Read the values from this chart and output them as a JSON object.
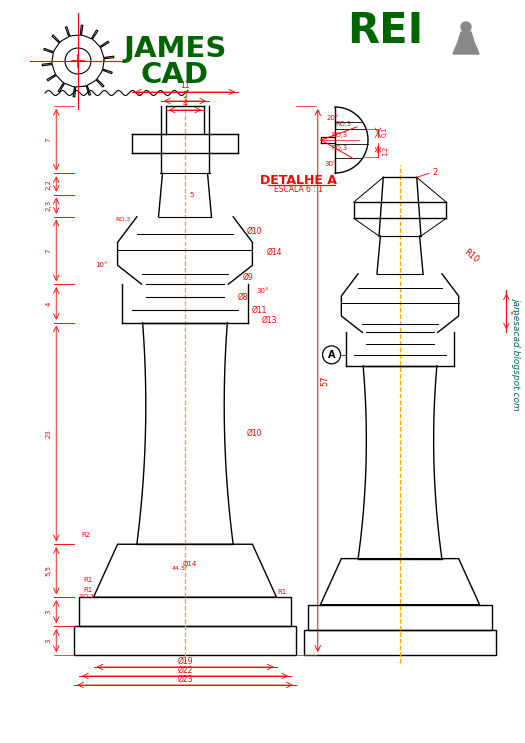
{
  "title": "REI",
  "logo_text1": "JAMES",
  "logo_text2": "CAD",
  "detail_title": "DETALHE A",
  "detail_subtitle": "ESCALA 6 : 1",
  "blog_text": "jamesacad.blogspot.com",
  "bg_color": "#FFFFFF",
  "red": "#FF0000",
  "black": "#000000",
  "orange": "#FFA500",
  "dark_green": "#006400",
  "gray": "#888888",
  "teal": "#006666"
}
